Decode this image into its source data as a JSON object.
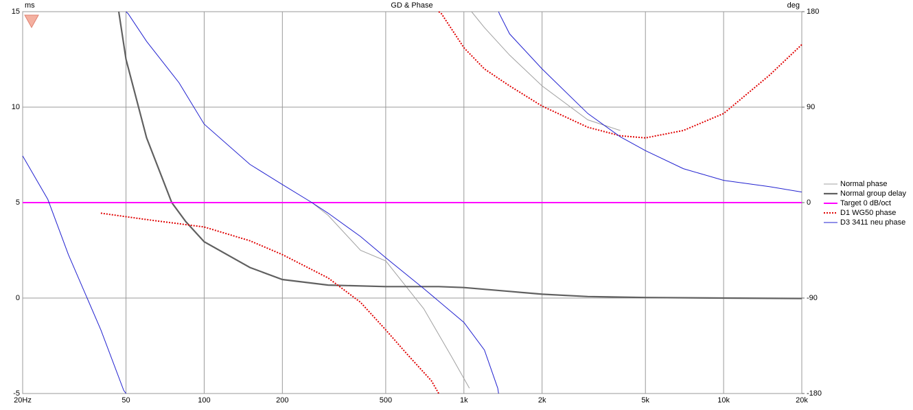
{
  "chart_data": {
    "type": "line",
    "title": "GD & Phase",
    "ylabel": "ms",
    "y2label": "deg",
    "xscale": "log",
    "grid": true,
    "legend": "right",
    "xlim": [
      20,
      20000
    ],
    "xticks": [
      {
        "value": 20,
        "label": "20Hz"
      },
      50,
      100,
      200,
      500,
      {
        "value": 1000,
        "label": "1k"
      },
      {
        "value": 2000,
        "label": "2k"
      },
      {
        "value": 5000,
        "label": "5k"
      },
      {
        "value": 10000,
        "label": "10k"
      },
      {
        "value": 20000,
        "label": "20k"
      }
    ],
    "ylim": [
      -5,
      15
    ],
    "yticks": [
      -5,
      0,
      5,
      10,
      15
    ],
    "y2lim": [
      -180,
      180
    ],
    "y2ticks": [
      -180,
      -90,
      0,
      90,
      180
    ],
    "series": [
      {
        "name": "Normal phase",
        "color": "#a0a0a0",
        "style": "thin",
        "axis": "y2",
        "x": [
          260,
          300,
          400,
          500,
          700,
          900,
          1050,
          null,
          1070,
          1200,
          1500,
          2000,
          3000,
          4000
        ],
        "values": [
          0,
          -12,
          -45,
          -55,
          -100,
          -146,
          -175,
          null,
          180,
          165,
          139,
          110,
          78,
          68
        ]
      },
      {
        "name": "Normal group delay",
        "color": "#606060",
        "style": "thick",
        "x": [
          46.9,
          50,
          60,
          75,
          85,
          100,
          150,
          200,
          300,
          500,
          800,
          1000,
          1500,
          2000,
          3000,
          5000,
          10000,
          20000
        ],
        "values": [
          15,
          12.5,
          8.4,
          5,
          4,
          2.95,
          1.6,
          0.97,
          0.68,
          0.6,
          0.6,
          0.55,
          0.35,
          0.2,
          0.08,
          0.03,
          0,
          -0.02
        ]
      },
      {
        "name": "Target 0 dB/oct",
        "color": "#ff00ff",
        "style": "medium",
        "axis": "y2",
        "x": [
          20,
          20000
        ],
        "values": [
          0,
          0
        ]
      },
      {
        "name": "D1 WG50 phase",
        "color": "#e00000",
        "style": "dotted",
        "axis": "y2",
        "x": [
          40,
          60,
          100,
          150,
          200,
          300,
          400,
          500,
          600,
          750,
          800,
          null,
          800,
          820,
          1000,
          1200,
          1500,
          2000,
          3000,
          4000,
          5000,
          7000,
          10000,
          15000,
          20000
        ],
        "values": [
          -10,
          -16,
          -23,
          -36,
          -49,
          -71,
          -94,
          -120,
          -142,
          -168,
          -180,
          null,
          180,
          178,
          146,
          126,
          110,
          91,
          71,
          63,
          61,
          68,
          84,
          120,
          149
        ]
      },
      {
        "name": "D3 3411 neu phase",
        "color": "#2020d0",
        "style": "thin",
        "axis": "y2",
        "x": [
          20,
          25,
          30,
          40,
          49,
          50,
          null,
          50,
          51,
          60,
          80,
          100,
          150,
          200,
          260,
          300,
          400,
          500,
          700,
          1000,
          1200,
          1350,
          1360,
          null,
          1360,
          1370,
          1500,
          2000,
          3000,
          4000,
          5000,
          7000,
          10000,
          15000,
          20000
        ],
        "values": [
          44,
          3,
          -49,
          -120,
          -177,
          -180,
          null,
          180,
          178,
          152,
          113,
          74,
          36,
          17,
          0,
          -10,
          -32,
          -52,
          -81,
          -113,
          -139,
          -175,
          -180,
          null,
          180,
          178,
          159,
          126,
          84,
          62,
          49,
          32,
          21,
          15,
          10
        ]
      }
    ]
  }
}
